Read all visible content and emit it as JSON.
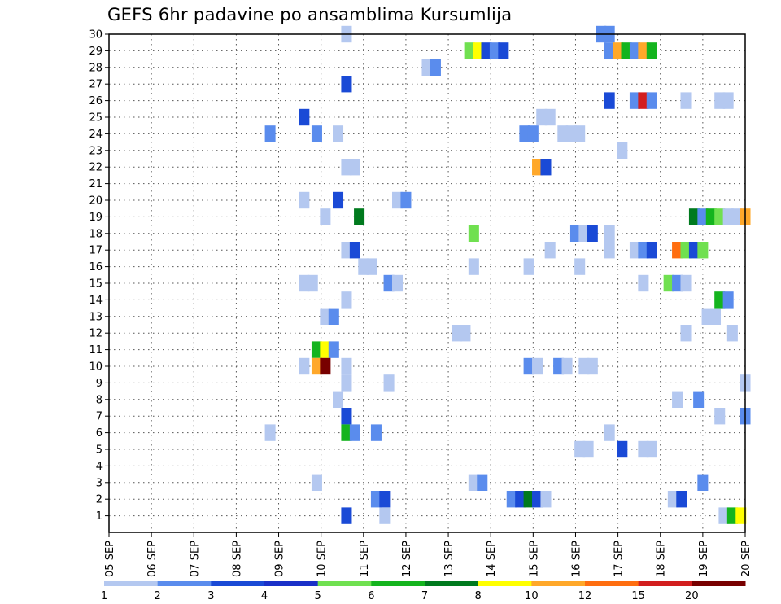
{
  "chart_data": {
    "type": "heatmap",
    "title": "GEFS 6hr padavine po ansamblima Kursumlija",
    "xlabel": "",
    "ylabel": "",
    "x_tick_labels": [
      "05 SEP",
      "06 SEP",
      "07 SEP",
      "08 SEP",
      "09 SEP",
      "10 SEP",
      "11 SEP",
      "12 SEP",
      "13 SEP",
      "14 SEP",
      "15 SEP",
      "16 SEP",
      "17 SEP",
      "18 SEP",
      "19 SEP",
      "20 SEP"
    ],
    "y_tick_labels": [
      "1",
      "2",
      "3",
      "4",
      "5",
      "6",
      "7",
      "8",
      "9",
      "10",
      "11",
      "12",
      "13",
      "14",
      "15",
      "16",
      "17",
      "18",
      "19",
      "20",
      "21",
      "22",
      "23",
      "24",
      "25",
      "26",
      "27",
      "28",
      "29",
      "30"
    ],
    "xlim_days": [
      0,
      15
    ],
    "ylim_members": [
      0,
      30
    ],
    "grid": true,
    "colorbar": {
      "levels": [
        "1",
        "2",
        "3",
        "4",
        "5",
        "6",
        "7",
        "8",
        "10",
        "12",
        "15",
        "20"
      ],
      "colors": [
        "#b4c8f0",
        "#5a8ced",
        "#1a4ad6",
        "#1a30c8",
        "#70e050",
        "#14b41e",
        "#007a1e",
        "#ffff00",
        "#ffa82a",
        "#ff6e10",
        "#d21e1e",
        "#780000"
      ]
    },
    "cells": [
      {
        "day": 5.6,
        "member": 30,
        "level": 1
      },
      {
        "day": 11.6,
        "member": 30,
        "level": 2
      },
      {
        "day": 11.8,
        "member": 30,
        "level": 2
      },
      {
        "day": 8.5,
        "member": 29,
        "level": 5
      },
      {
        "day": 8.7,
        "member": 29,
        "level": 8
      },
      {
        "day": 8.9,
        "member": 29,
        "level": 3
      },
      {
        "day": 9.1,
        "member": 29,
        "level": 2
      },
      {
        "day": 9.3,
        "member": 29,
        "level": 3
      },
      {
        "day": 11.8,
        "member": 29,
        "level": 2
      },
      {
        "day": 12.0,
        "member": 29,
        "level": 9
      },
      {
        "day": 12.2,
        "member": 29,
        "level": 6
      },
      {
        "day": 12.4,
        "member": 29,
        "level": 2
      },
      {
        "day": 12.6,
        "member": 29,
        "level": 9
      },
      {
        "day": 12.8,
        "member": 29,
        "level": 6
      },
      {
        "day": 7.5,
        "member": 28,
        "level": 1
      },
      {
        "day": 7.7,
        "member": 28,
        "level": 2
      },
      {
        "day": 5.6,
        "member": 27,
        "level": 3
      },
      {
        "day": 11.8,
        "member": 26,
        "level": 3
      },
      {
        "day": 12.4,
        "member": 26,
        "level": 2
      },
      {
        "day": 12.6,
        "member": 26,
        "level": 11
      },
      {
        "day": 12.8,
        "member": 26,
        "level": 2
      },
      {
        "day": 13.6,
        "member": 26,
        "level": 1
      },
      {
        "day": 14.4,
        "member": 26,
        "level": 1
      },
      {
        "day": 14.6,
        "member": 26,
        "level": 1
      },
      {
        "day": 4.6,
        "member": 25,
        "level": 3
      },
      {
        "day": 10.2,
        "member": 25,
        "level": 1
      },
      {
        "day": 10.4,
        "member": 25,
        "level": 1
      },
      {
        "day": 3.8,
        "member": 24,
        "level": 2
      },
      {
        "day": 4.9,
        "member": 24,
        "level": 2
      },
      {
        "day": 5.4,
        "member": 24,
        "level": 1
      },
      {
        "day": 9.8,
        "member": 24,
        "level": 2
      },
      {
        "day": 10.0,
        "member": 24,
        "level": 2
      },
      {
        "day": 10.7,
        "member": 24,
        "level": 1
      },
      {
        "day": 10.9,
        "member": 24,
        "level": 1
      },
      {
        "day": 11.1,
        "member": 24,
        "level": 1
      },
      {
        "day": 12.1,
        "member": 23,
        "level": 1
      },
      {
        "day": 5.6,
        "member": 22,
        "level": 1
      },
      {
        "day": 5.8,
        "member": 22,
        "level": 1
      },
      {
        "day": 10.1,
        "member": 22,
        "level": 9
      },
      {
        "day": 10.3,
        "member": 22,
        "level": 3
      },
      {
        "day": 4.6,
        "member": 20,
        "level": 1
      },
      {
        "day": 5.4,
        "member": 20,
        "level": 3
      },
      {
        "day": 6.8,
        "member": 20,
        "level": 1
      },
      {
        "day": 7.0,
        "member": 20,
        "level": 2
      },
      {
        "day": 5.1,
        "member": 19,
        "level": 1
      },
      {
        "day": 5.9,
        "member": 19,
        "level": 7
      },
      {
        "day": 13.8,
        "member": 19,
        "level": 7
      },
      {
        "day": 14.0,
        "member": 19,
        "level": 2
      },
      {
        "day": 14.2,
        "member": 19,
        "level": 6
      },
      {
        "day": 14.4,
        "member": 19,
        "level": 5
      },
      {
        "day": 14.6,
        "member": 19,
        "level": 1
      },
      {
        "day": 14.8,
        "member": 19,
        "level": 1
      },
      {
        "day": 15.0,
        "member": 19,
        "level": 9
      },
      {
        "day": 8.6,
        "member": 18,
        "level": 5
      },
      {
        "day": 11.0,
        "member": 18,
        "level": 2
      },
      {
        "day": 11.2,
        "member": 18,
        "level": 1
      },
      {
        "day": 11.4,
        "member": 18,
        "level": 3
      },
      {
        "day": 11.8,
        "member": 18,
        "level": 1
      },
      {
        "day": 5.6,
        "member": 17,
        "level": 1
      },
      {
        "day": 5.8,
        "member": 17,
        "level": 3
      },
      {
        "day": 10.4,
        "member": 17,
        "level": 1
      },
      {
        "day": 11.8,
        "member": 17,
        "level": 1
      },
      {
        "day": 12.4,
        "member": 17,
        "level": 1
      },
      {
        "day": 12.6,
        "member": 17,
        "level": 2
      },
      {
        "day": 12.8,
        "member": 17,
        "level": 3
      },
      {
        "day": 13.4,
        "member": 17,
        "level": 10
      },
      {
        "day": 13.6,
        "member": 17,
        "level": 5
      },
      {
        "day": 13.8,
        "member": 17,
        "level": 3
      },
      {
        "day": 14.0,
        "member": 17,
        "level": 5
      },
      {
        "day": 6.0,
        "member": 16,
        "level": 1
      },
      {
        "day": 6.2,
        "member": 16,
        "level": 1
      },
      {
        "day": 8.6,
        "member": 16,
        "level": 1
      },
      {
        "day": 9.9,
        "member": 16,
        "level": 1
      },
      {
        "day": 11.1,
        "member": 16,
        "level": 1
      },
      {
        "day": 4.6,
        "member": 15,
        "level": 1
      },
      {
        "day": 4.8,
        "member": 15,
        "level": 1
      },
      {
        "day": 6.6,
        "member": 15,
        "level": 2
      },
      {
        "day": 6.8,
        "member": 15,
        "level": 1
      },
      {
        "day": 12.6,
        "member": 15,
        "level": 1
      },
      {
        "day": 13.2,
        "member": 15,
        "level": 5
      },
      {
        "day": 13.4,
        "member": 15,
        "level": 2
      },
      {
        "day": 13.6,
        "member": 15,
        "level": 1
      },
      {
        "day": 5.6,
        "member": 14,
        "level": 1
      },
      {
        "day": 14.4,
        "member": 14,
        "level": 6
      },
      {
        "day": 14.6,
        "member": 14,
        "level": 2
      },
      {
        "day": 5.1,
        "member": 13,
        "level": 1
      },
      {
        "day": 5.3,
        "member": 13,
        "level": 2
      },
      {
        "day": 14.1,
        "member": 13,
        "level": 1
      },
      {
        "day": 14.3,
        "member": 13,
        "level": 1
      },
      {
        "day": 8.2,
        "member": 12,
        "level": 1
      },
      {
        "day": 8.4,
        "member": 12,
        "level": 1
      },
      {
        "day": 13.6,
        "member": 12,
        "level": 1
      },
      {
        "day": 14.7,
        "member": 12,
        "level": 1
      },
      {
        "day": 4.9,
        "member": 11,
        "level": 6
      },
      {
        "day": 5.1,
        "member": 11,
        "level": 8
      },
      {
        "day": 5.3,
        "member": 11,
        "level": 2
      },
      {
        "day": 4.6,
        "member": 10,
        "level": 1
      },
      {
        "day": 4.9,
        "member": 10,
        "level": 9
      },
      {
        "day": 5.1,
        "member": 10,
        "level": 12
      },
      {
        "day": 5.6,
        "member": 10,
        "level": 1
      },
      {
        "day": 9.9,
        "member": 10,
        "level": 2
      },
      {
        "day": 10.1,
        "member": 10,
        "level": 1
      },
      {
        "day": 10.6,
        "member": 10,
        "level": 2
      },
      {
        "day": 10.8,
        "member": 10,
        "level": 1
      },
      {
        "day": 11.2,
        "member": 10,
        "level": 1
      },
      {
        "day": 11.4,
        "member": 10,
        "level": 1
      },
      {
        "day": 5.6,
        "member": 9,
        "level": 1
      },
      {
        "day": 6.6,
        "member": 9,
        "level": 1
      },
      {
        "day": 15.0,
        "member": 9,
        "level": 1
      },
      {
        "day": 5.4,
        "member": 8,
        "level": 1
      },
      {
        "day": 13.4,
        "member": 8,
        "level": 1
      },
      {
        "day": 13.9,
        "member": 8,
        "level": 2
      },
      {
        "day": 5.6,
        "member": 7,
        "level": 3
      },
      {
        "day": 14.4,
        "member": 7,
        "level": 1
      },
      {
        "day": 15.0,
        "member": 7,
        "level": 2
      },
      {
        "day": 3.8,
        "member": 6,
        "level": 1
      },
      {
        "day": 5.6,
        "member": 6,
        "level": 6
      },
      {
        "day": 5.8,
        "member": 6,
        "level": 2
      },
      {
        "day": 6.3,
        "member": 6,
        "level": 2
      },
      {
        "day": 11.8,
        "member": 6,
        "level": 1
      },
      {
        "day": 11.1,
        "member": 5,
        "level": 1
      },
      {
        "day": 11.3,
        "member": 5,
        "level": 1
      },
      {
        "day": 12.1,
        "member": 5,
        "level": 3
      },
      {
        "day": 12.6,
        "member": 5,
        "level": 1
      },
      {
        "day": 12.8,
        "member": 5,
        "level": 1
      },
      {
        "day": 4.9,
        "member": 3,
        "level": 1
      },
      {
        "day": 8.6,
        "member": 3,
        "level": 1
      },
      {
        "day": 8.8,
        "member": 3,
        "level": 2
      },
      {
        "day": 14.0,
        "member": 3,
        "level": 2
      },
      {
        "day": 6.3,
        "member": 2,
        "level": 2
      },
      {
        "day": 6.5,
        "member": 2,
        "level": 3
      },
      {
        "day": 9.5,
        "member": 2,
        "level": 2
      },
      {
        "day": 9.7,
        "member": 2,
        "level": 3
      },
      {
        "day": 9.9,
        "member": 2,
        "level": 7
      },
      {
        "day": 10.1,
        "member": 2,
        "level": 3
      },
      {
        "day": 10.3,
        "member": 2,
        "level": 1
      },
      {
        "day": 13.3,
        "member": 2,
        "level": 1
      },
      {
        "day": 13.5,
        "member": 2,
        "level": 3
      },
      {
        "day": 5.6,
        "member": 1,
        "level": 3
      },
      {
        "day": 6.5,
        "member": 1,
        "level": 1
      },
      {
        "day": 14.5,
        "member": 1,
        "level": 1
      },
      {
        "day": 14.7,
        "member": 1,
        "level": 6
      },
      {
        "day": 14.9,
        "member": 1,
        "level": 8
      }
    ]
  }
}
